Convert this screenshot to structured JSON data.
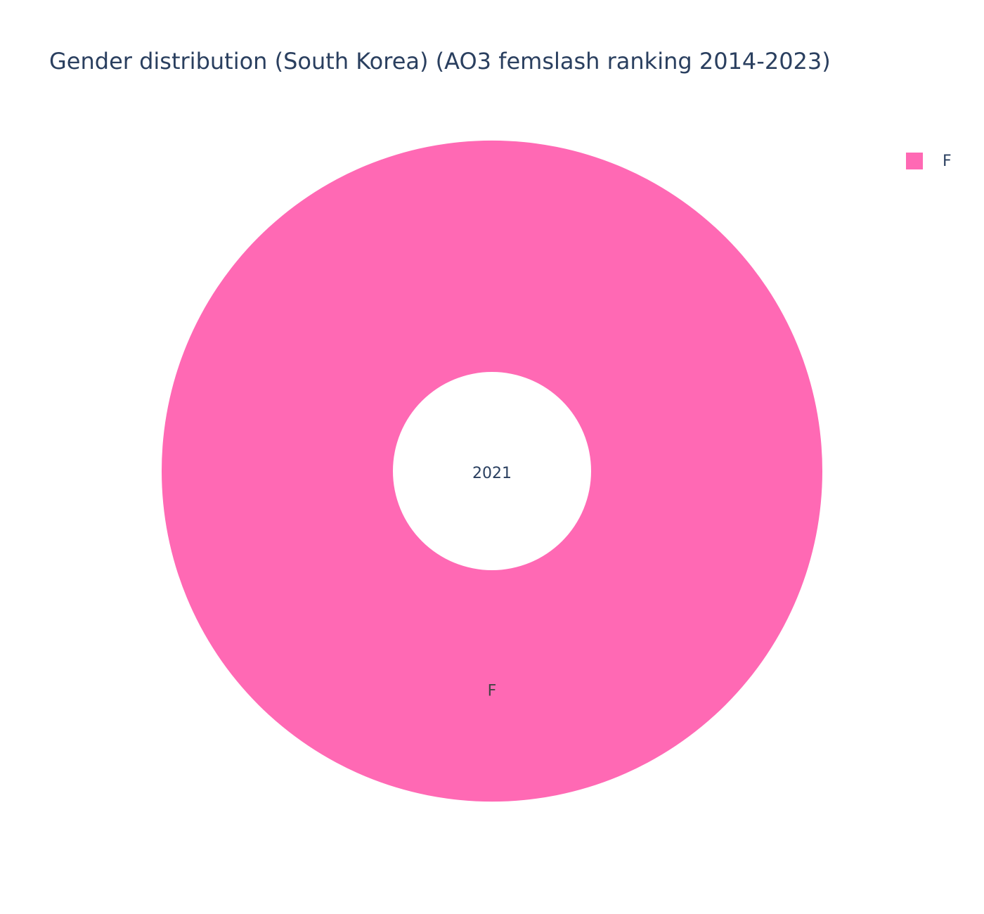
{
  "chart_data": {
    "type": "pie",
    "title": "Gender distribution (South Korea) (AO3 femslash ranking 2014-2023)",
    "center_label": "2021",
    "hole": true,
    "slices": [
      {
        "label": "F",
        "value": 1,
        "color": "#ff69b4"
      }
    ],
    "legend": {
      "placement": "top-right",
      "entries": [
        {
          "label": "F",
          "color": "#ff69b4"
        }
      ]
    }
  },
  "colors": {
    "text": "#2a3f5f",
    "background": "#ffffff"
  }
}
